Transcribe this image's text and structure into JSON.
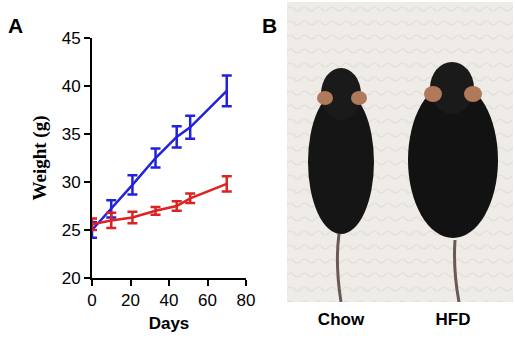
{
  "chart_data": {
    "type": "line",
    "panel_label": "A",
    "x_label": "Days",
    "y_label": "Weight (g)",
    "x": [
      0,
      10,
      21,
      33,
      44,
      51,
      70
    ],
    "series": [
      {
        "color": "#2222dd",
        "values": [
          25.0,
          27.2,
          29.7,
          32.5,
          34.7,
          35.7,
          39.5
        ],
        "errors": [
          0.8,
          0.9,
          1.0,
          1.0,
          1.1,
          1.2,
          1.6
        ]
      },
      {
        "color": "#dd2222",
        "values": [
          25.6,
          26.0,
          26.3,
          27.0,
          27.5,
          28.3,
          29.8
        ],
        "errors": [
          0.6,
          0.8,
          0.6,
          0.4,
          0.5,
          0.5,
          0.8
        ]
      }
    ],
    "xlim": [
      0,
      80
    ],
    "xticks": [
      0,
      20,
      40,
      60,
      80
    ],
    "ylim": [
      20,
      45
    ],
    "yticks": [
      20,
      25,
      30,
      35,
      40,
      45
    ],
    "grid": false
  },
  "photo_panel": {
    "panel_label": "B",
    "labels": [
      "Chow",
      "HFD"
    ]
  }
}
